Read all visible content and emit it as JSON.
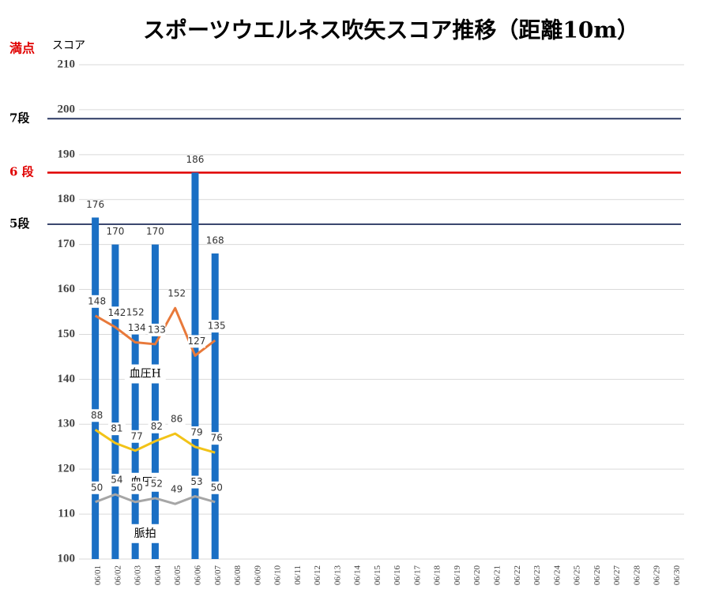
{
  "chart_data": {
    "type": "bar",
    "title": "スポーツウエルネス吹矢スコア推移（距離10m）",
    "ylabel": "スコア",
    "max_label": "満点",
    "categories": [
      "06/01",
      "06/02",
      "06/03",
      "06/04",
      "06/05",
      "06/06",
      "06/07",
      "06/08",
      "06/09",
      "06/10",
      "06/11",
      "06/12",
      "06/13",
      "06/14",
      "06/15",
      "06/16",
      "06/17",
      "06/18",
      "06/19",
      "06/20",
      "06/21",
      "06/22",
      "06/23",
      "06/24",
      "06/25",
      "06/26",
      "06/27",
      "06/28",
      "06/29",
      "06/30"
    ],
    "values": [
      176,
      170,
      152,
      170,
      null,
      186,
      168,
      null,
      null,
      null,
      null,
      null,
      null,
      null,
      null,
      null,
      null,
      null,
      null,
      null,
      null,
      null,
      null,
      null,
      null,
      null,
      null,
      null,
      null,
      null
    ],
    "color": "#1a6fc4",
    "series": [
      {
        "name": "血圧H",
        "type": "line",
        "axis": "y2",
        "color": "#e8793a",
        "values": [
          148,
          142,
          134,
          133,
          152,
          127,
          135,
          null,
          null,
          null,
          null,
          null,
          null,
          null,
          null,
          null,
          null,
          null,
          null,
          null,
          null,
          null,
          null,
          null,
          null,
          null,
          null,
          null,
          null,
          null
        ]
      },
      {
        "name": "血圧L",
        "type": "line",
        "axis": "y2",
        "color": "#f2c318",
        "values": [
          88,
          81,
          77,
          82,
          86,
          79,
          76,
          null,
          null,
          null,
          null,
          null,
          null,
          null,
          null,
          null,
          null,
          null,
          null,
          null,
          null,
          null,
          null,
          null,
          null,
          null,
          null,
          null,
          null,
          null
        ]
      },
      {
        "name": "脈拍",
        "type": "line",
        "axis": "y2",
        "color": "#a6a6a6",
        "values": [
          50,
          54,
          50,
          52,
          49,
          53,
          50,
          null,
          null,
          null,
          null,
          null,
          null,
          null,
          null,
          null,
          null,
          null,
          null,
          null,
          null,
          null,
          null,
          null,
          null,
          null,
          null,
          null,
          null,
          null
        ]
      }
    ],
    "ylim": [
      100,
      210
    ],
    "yticks": [
      100,
      110,
      120,
      130,
      140,
      150,
      160,
      170,
      180,
      190,
      200,
      210
    ],
    "y2lim": [
      20,
      280
    ],
    "grid": true,
    "reference_lines": [
      {
        "label": "7段",
        "value": 198,
        "color": "#1f2d5a"
      },
      {
        "label": "6 段",
        "value": 186,
        "color": "#e00000"
      },
      {
        "label": "5段",
        "value": 174.5,
        "color": "#1f2d5a"
      }
    ]
  }
}
